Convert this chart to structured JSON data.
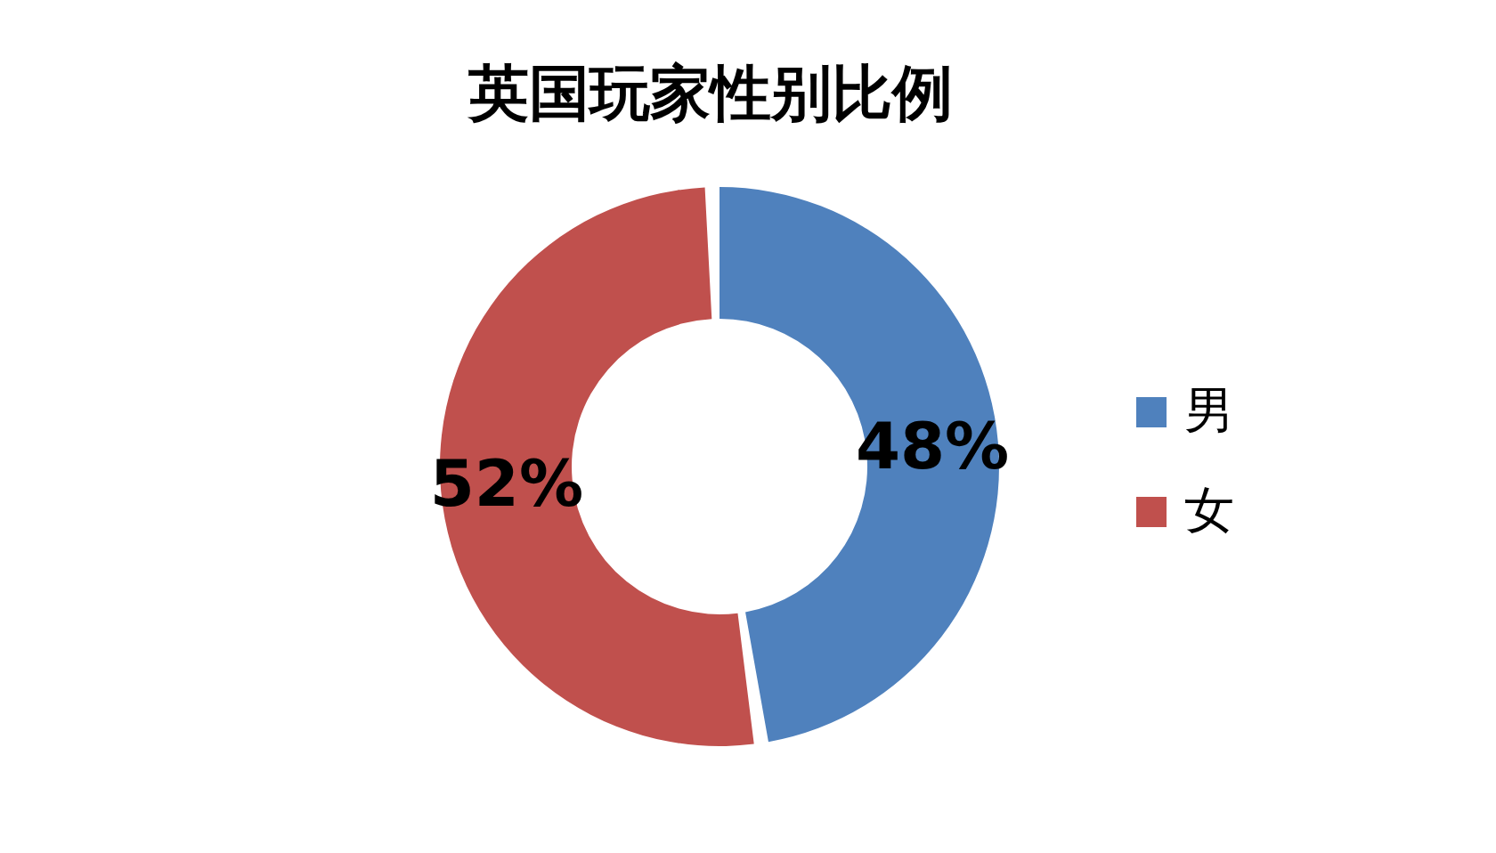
{
  "chart_data": {
    "type": "donut",
    "title": "英国玩家性别比例",
    "categories": [
      "男",
      "女"
    ],
    "values": [
      48,
      52
    ],
    "colors": [
      "#4f81bd",
      "#c0504d"
    ],
    "value_labels": [
      "48%",
      "52%"
    ],
    "legend": "right"
  }
}
